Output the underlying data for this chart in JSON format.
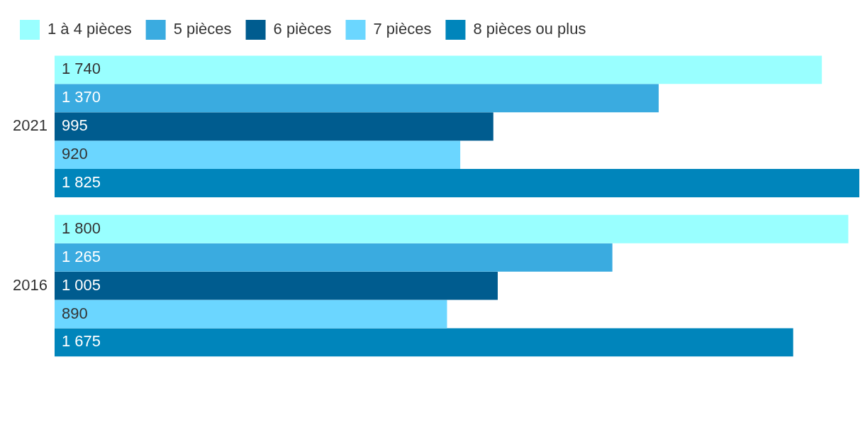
{
  "chart_data": {
    "type": "bar",
    "orientation": "horizontal",
    "categories": [
      "2021",
      "2016"
    ],
    "legend": "top left",
    "grid": false,
    "tick_labels": "y",
    "series": [
      {
        "name": "1 à 4 pièces",
        "color": "#99ffff",
        "values": [
          1740,
          1800
        ],
        "value_labels": [
          "1 740",
          "1 800"
        ]
      },
      {
        "name": "5 pièces",
        "color": "#3aabe0",
        "values": [
          1370,
          1265
        ],
        "value_labels": [
          "1 370",
          "1 265"
        ]
      },
      {
        "name": "6 pièces",
        "color": "#005c8f",
        "values": [
          995,
          1005
        ],
        "value_labels": [
          "995",
          "1 005"
        ]
      },
      {
        "name": "7 pièces",
        "color": "#6bd6ff",
        "values": [
          920,
          890
        ],
        "value_labels": [
          "920",
          "890"
        ]
      },
      {
        "name": "8 pièces ou plus",
        "color": "#0085bb",
        "values": [
          1825,
          1675
        ],
        "value_labels": [
          "1 825",
          "1 675"
        ]
      }
    ]
  }
}
